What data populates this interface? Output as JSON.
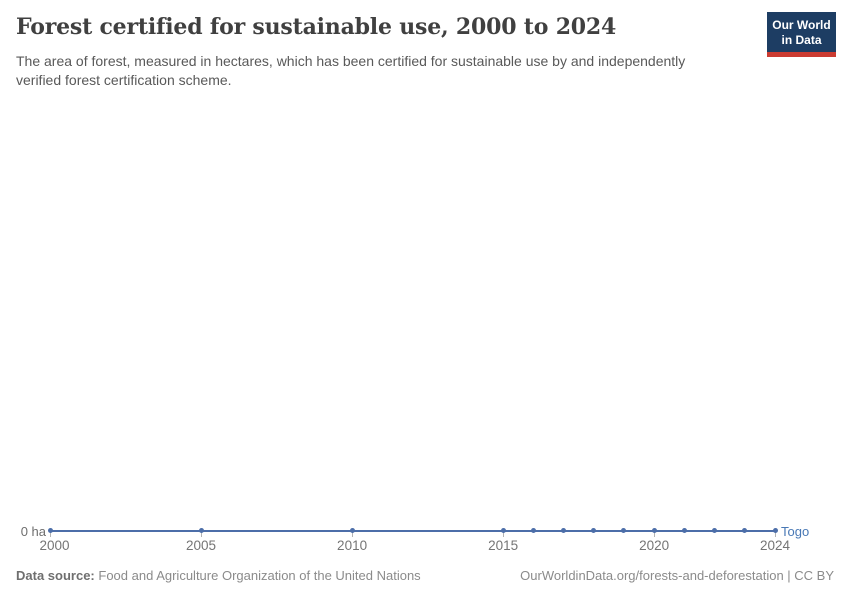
{
  "header": {
    "title": "Forest certified for sustainable use, 2000 to 2024",
    "subtitle": "The area of forest, measured in hectares, which has been certified for sustainable use by and independently verified forest certification scheme.",
    "logo": {
      "line1": "Our World",
      "line2": "in Data",
      "bg_color": "#1d3d63",
      "stripe_color": "#cb3b31"
    }
  },
  "chart_data": {
    "type": "line",
    "title": "Forest certified for sustainable use, 2000 to 2024",
    "entity": "Togo",
    "unit": "ha",
    "x": [
      2000,
      2005,
      2010,
      2015,
      2016,
      2017,
      2018,
      2019,
      2020,
      2021,
      2022,
      2023,
      2024
    ],
    "y": [
      0,
      0,
      0,
      0,
      0,
      0,
      0,
      0,
      0,
      0,
      0,
      0,
      0
    ],
    "x_ticks": [
      2000,
      2005,
      2010,
      2015,
      2020,
      2024
    ],
    "x_range": [
      2000,
      2024
    ],
    "ylim": [
      0,
      0
    ],
    "y_zero_label": "0 ha",
    "xlabel": "",
    "ylabel": "",
    "grid": false,
    "legend_position": "end-of-line",
    "line_color": "#4C6EA9",
    "entity_label_color": "#4878B5"
  },
  "footer": {
    "data_source_label": "Data source:",
    "data_source_text": "Food and Agriculture Organization of the United Nations",
    "url_license": "OurWorldinData.org/forests-and-deforestation | CC BY"
  }
}
